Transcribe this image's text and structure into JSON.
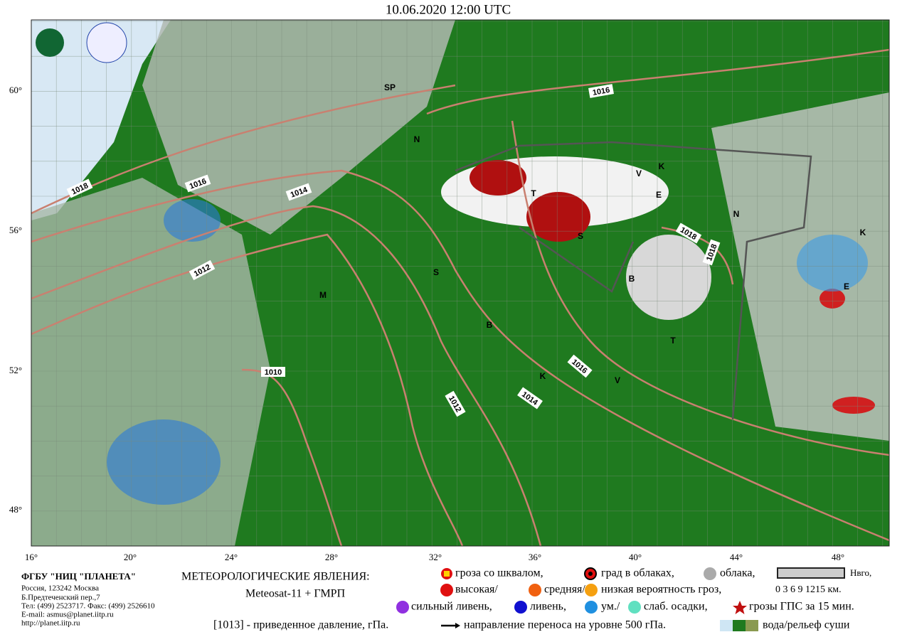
{
  "header": {
    "title": "10.06.2020  12:00  UTC"
  },
  "map": {
    "lat_labels": [
      "60°",
      "56°",
      "52°",
      "48°"
    ],
    "lon_labels": [
      "16°",
      "20°",
      "24°",
      "28°",
      "32°",
      "36°",
      "40°",
      "44°",
      "48°"
    ],
    "isobar_labels": [
      "1018",
      "1016",
      "1014",
      "1012",
      "1010",
      "1016",
      "1018",
      "1018",
      "1016",
      "1014",
      "1012"
    ],
    "letters": [
      "SP",
      "N",
      "T",
      "S",
      "E",
      "V",
      "K",
      "B",
      "M",
      "S",
      "B",
      "K",
      "V",
      "N",
      "K",
      "E",
      "T"
    ]
  },
  "legend": {
    "heading": "МЕТЕОРОЛОГИЧЕСКИЕ ЯВЛЕНИЯ:",
    "source": "Meteosat-11 + ГМРП",
    "items": [
      "гроза со шквалом,",
      "град в облаках,",
      "облака,",
      "высокая/",
      "средняя/",
      "низкая вероятность гроз,",
      "сильный ливень,",
      "ливень,",
      "ум./",
      "слаб. осадки,",
      "грозы ГПС за 15 мин."
    ],
    "height_title": "Нвго,",
    "height_scale": "0 3 6 9 1215 км.",
    "pressure_note": "[1013] - приведенное давление, гПа.",
    "wind_note": "направление  переноса на уровне 500 гПа.",
    "terrain_note": "вода/рельеф суши"
  },
  "org": {
    "lines": [
      "ФГБУ \"НИЦ \"ПЛАНЕТА\"",
      "Россия, 123242 Москва",
      "Б.Предтеченский пер.,7",
      "Тел: (499) 2523717. Факс: (499) 2526610",
      "E-mail: asmus@planet.iitp.ru",
      "http://planet.iitp.ru"
    ]
  }
}
